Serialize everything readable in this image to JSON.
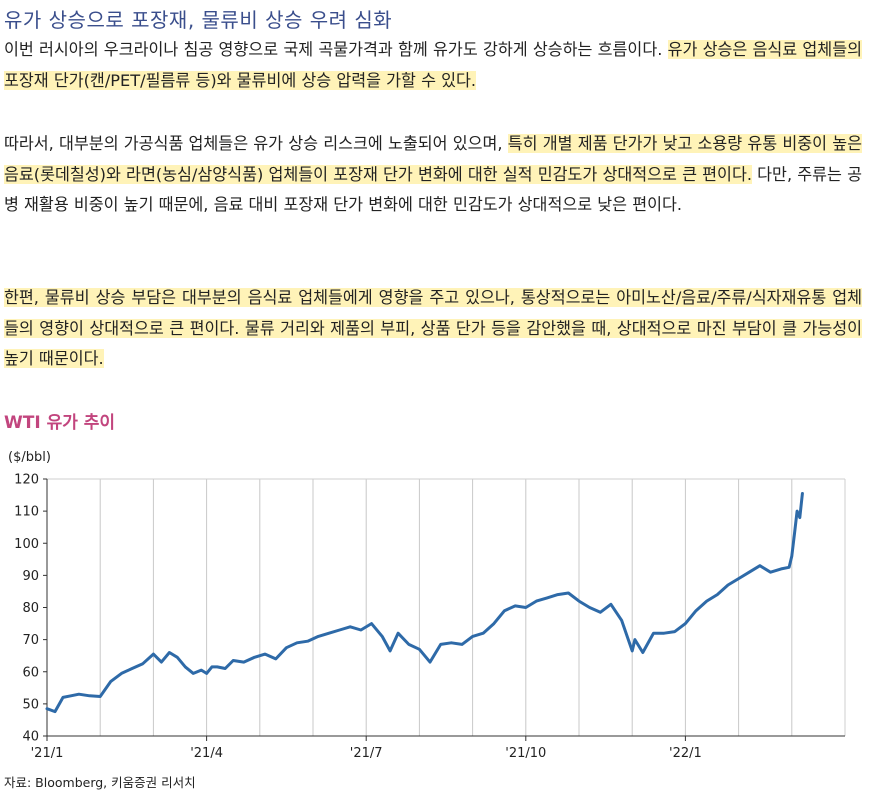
{
  "title": "유가 상승으로 포장재, 물류비 상승 우려 심화",
  "paragraphs": [
    [
      {
        "text": "이번 러시아의 우크라이나 침공 영향으로 국제 곡물가격과 함께 유가도 강하게 상승하는 흐름이다. ",
        "hl": false
      },
      {
        "text": "유가 상승은 음식료 업체들의 포장재 단가(캔/PET/필름류 등)와 물류비에 상승 압력을 가할 수 있다.",
        "hl": true
      }
    ],
    [
      {
        "text": "따라서, 대부분의 가공식품 업체들은 유가 상승 리스크에 노출되어 있으며, ",
        "hl": false
      },
      {
        "text": "특히 개별 제품 단가가 낮고 소용량 유통 비중이 높은 음료(롯데칠성)와 라면(농심/삼양식품) 업체들이 포장재 단가 변화에 대한 실적 민감도가 상대적으로 큰 편이다.",
        "hl": true
      },
      {
        "text": " 다만, 주류는 공병 재활용 비중이 높기 때문에, 음료 대비 포장재 단가 변화에 대한 민감도가 상대적으로 낮은 편이다.",
        "hl": false
      }
    ],
    [
      {
        "text": "한편, 물류비 상승 부담은 대부분의 음식료 업체들에게 영향을 주고 있으나, 통상적으로는 아미노산/음료/주류/식자재유통 업체들의 영향이 상대적으로 큰 편이다. 물류 거리와 제품의 부피, 상품 단가 등을 감안했을 때, 상대적으로 마진 부담이 클 가능성이 높기 때문이다.",
        "hl": true
      }
    ]
  ],
  "chart_title": "WTI 유가 추이",
  "unit_label": "($/bbl)",
  "source": "자료: Bloomberg, 키움증권 리서치",
  "colors": {
    "line": "#2e6aa8",
    "grid": "#c8c8c8",
    "title": "#3a4e8c",
    "chart_title": "#c2457e",
    "highlight": "#fff3b8"
  },
  "chart_data": {
    "type": "line",
    "title": "WTI 유가 추이",
    "ylabel": "($/bbl)",
    "ylim": [
      40,
      120
    ],
    "yticks": [
      40,
      50,
      60,
      70,
      80,
      90,
      100,
      110,
      120
    ],
    "xticks": [
      "'21/1",
      "'21/4",
      "'21/7",
      "'21/10",
      "'22/1"
    ],
    "xtick_months": [
      0,
      3,
      6,
      9,
      12
    ],
    "xlim_months": [
      0,
      15
    ],
    "grid": "vertical monthly",
    "series": [
      {
        "x_months": [
          0.0,
          0.15,
          0.3,
          0.45,
          0.6,
          0.8,
          1.0,
          1.2,
          1.4,
          1.6,
          1.8,
          2.0,
          2.15,
          2.3,
          2.45,
          2.6,
          2.75,
          2.9,
          3.0,
          3.1,
          3.2,
          3.35,
          3.5,
          3.7,
          3.9,
          4.1,
          4.3,
          4.5,
          4.7,
          4.9,
          5.1,
          5.3,
          5.5,
          5.7,
          5.9,
          6.1,
          6.3,
          6.45,
          6.6,
          6.8,
          7.0,
          7.2,
          7.4,
          7.6,
          7.8,
          8.0,
          8.2,
          8.4,
          8.6,
          8.8,
          9.0,
          9.2,
          9.4,
          9.6,
          9.8,
          10.0,
          10.2,
          10.4,
          10.6,
          10.8,
          11.0,
          11.05,
          11.2,
          11.4,
          11.6,
          11.8,
          12.0,
          12.2,
          12.4,
          12.6,
          12.8,
          13.0,
          13.2,
          13.4,
          13.6,
          13.8,
          13.95,
          14.0,
          14.05,
          14.1,
          14.15,
          14.2
        ],
        "values": [
          48.5,
          47.6,
          52.0,
          52.5,
          53.0,
          52.5,
          52.3,
          57.0,
          59.5,
          61.0,
          62.5,
          65.5,
          63.0,
          66.0,
          64.5,
          61.5,
          59.5,
          60.5,
          59.5,
          61.5,
          61.5,
          61.0,
          63.5,
          63.0,
          64.5,
          65.5,
          64.0,
          67.5,
          69.0,
          69.5,
          71.0,
          72.0,
          73.0,
          74.0,
          73.0,
          75.0,
          71.0,
          66.5,
          72.0,
          68.5,
          67.0,
          63.0,
          68.5,
          69.0,
          68.5,
          71.0,
          72.0,
          75.0,
          79.0,
          80.5,
          80.0,
          82.0,
          83.0,
          84.0,
          84.5,
          82.0,
          80.0,
          78.5,
          81.0,
          76.0,
          66.5,
          70.0,
          66.0,
          72.0,
          72.0,
          72.5,
          75.0,
          79.0,
          82.0,
          84.0,
          87.0,
          89.0,
          91.0,
          93.0,
          91.0,
          92.0,
          92.5,
          96.0,
          103.0,
          110.0,
          108.0,
          115.5
        ]
      }
    ]
  }
}
